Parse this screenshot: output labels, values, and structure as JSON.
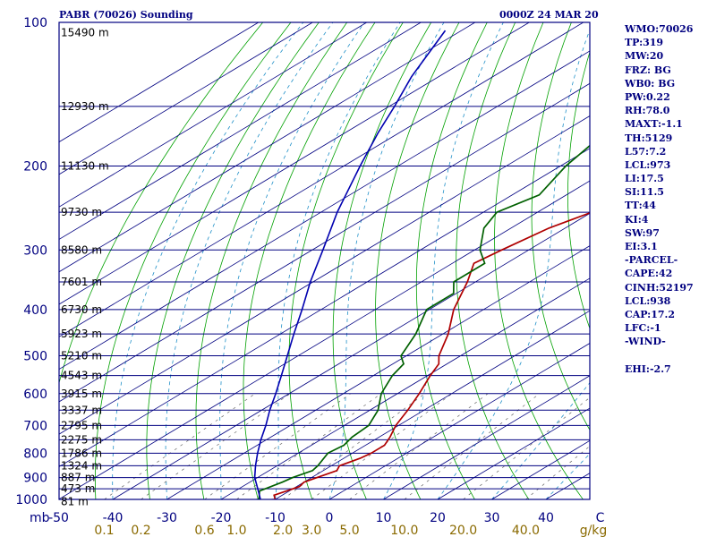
{
  "header": {
    "station_title": "PABR (70026) Sounding",
    "time_title": "0000Z 24 MAR 20"
  },
  "indices": [
    "WMO:70026",
    "TP:319",
    "MW:20",
    "FRZ: BG",
    "WB0: BG",
    "PW:0.22",
    "RH:78.0",
    "MAXT:-1.1",
    "TH:5129",
    "L57:7.2",
    "LCL:973",
    "LI:17.5",
    "SI:11.5",
    "TT:44",
    "KI:4",
    "SW:97",
    "EI:3.1",
    "-PARCEL-",
    "CAPE:42",
    "CINH:52197",
    "LCL:938",
    "CAP:17.2",
    "LFC:-1",
    "-WIND-",
    "",
    "EHI:-2.7"
  ],
  "colors": {
    "frame": "#000080",
    "isobar": "#000080",
    "isotherm": "#000080",
    "dry_adiabat": "#00a000",
    "moist_adiabat": "#2090c8",
    "mixing_ratio": "#666666",
    "temperature": "#b00000",
    "dewpoint": "#006000",
    "parcel": "#0000b0",
    "pressure_labels": "#000080",
    "temperature_labels": "#000080",
    "mixing_ratio_labels": "#8a6a00"
  },
  "chart_data": {
    "type": "line",
    "title": "PABR (70026) Sounding",
    "subtitle": "0000Z 24 MAR 20",
    "pressure_axis": {
      "unit": "mb",
      "scale": "log",
      "range": [
        1000,
        100
      ],
      "ticks": [
        "100",
        "200",
        "300",
        "400",
        "500",
        "600",
        "700",
        "800",
        "900",
        "1000"
      ]
    },
    "temperature_axis": {
      "range": [
        -50,
        50
      ],
      "tick_labels": [
        "-50",
        "-40",
        "-30",
        "-20",
        "-10",
        "0",
        "10",
        "20",
        "30",
        "40",
        "C"
      ]
    },
    "mixing_ratio_axis": {
      "unit": "g/kg",
      "values": [
        0.1,
        0.2,
        0.6,
        1.0,
        2.0,
        3.0,
        5.0,
        10.0,
        20.0,
        40.0
      ],
      "tick_labels": [
        "0.1",
        "0.2",
        "0.6",
        "1.0",
        "2.0",
        "3.0",
        "5.0",
        "10.0",
        "20.0",
        "40.0",
        "g/kg"
      ]
    },
    "height_labels": [
      {
        "p": 105,
        "label": "15490 m"
      },
      {
        "p": 150,
        "label": "12930 m"
      },
      {
        "p": 200,
        "label": "11130 m"
      },
      {
        "p": 250,
        "label": "9730 m"
      },
      {
        "p": 300,
        "label": "8580 m"
      },
      {
        "p": 350,
        "label": "7601 m"
      },
      {
        "p": 400,
        "label": "6730 m"
      },
      {
        "p": 450,
        "label": "5923 m"
      },
      {
        "p": 500,
        "label": "5210 m"
      },
      {
        "p": 550,
        "label": "4543 m"
      },
      {
        "p": 600,
        "label": "3915 m"
      },
      {
        "p": 650,
        "label": "3337 m"
      },
      {
        "p": 700,
        "label": "2795 m"
      },
      {
        "p": 750,
        "label": "2275 m"
      },
      {
        "p": 800,
        "label": "1786 m"
      },
      {
        "p": 850,
        "label": "1324 m"
      },
      {
        "p": 900,
        "label": "887 m"
      },
      {
        "p": 950,
        "label": "473 m"
      },
      {
        "p": 1010,
        "label": "81 m"
      }
    ],
    "series": [
      {
        "key": "temperature",
        "values": [
          [
            1010,
            -14.5
          ],
          [
            1000,
            -10.0
          ],
          [
            980,
            -11.5
          ],
          [
            960,
            -10.5
          ],
          [
            940,
            -9.5
          ],
          [
            920,
            -10.0
          ],
          [
            900,
            -9.0
          ],
          [
            870,
            -7.5
          ],
          [
            850,
            -8.5
          ],
          [
            820,
            -7.0
          ],
          [
            800,
            -6.5
          ],
          [
            770,
            -6.5
          ],
          [
            740,
            -8.0
          ],
          [
            700,
            -10.5
          ],
          [
            650,
            -13.0
          ],
          [
            600,
            -16.0
          ],
          [
            550,
            -19.5
          ],
          [
            520,
            -21.5
          ],
          [
            500,
            -24.0
          ],
          [
            450,
            -29.0
          ],
          [
            400,
            -35.5
          ],
          [
            350,
            -41.5
          ],
          [
            320,
            -46.0
          ],
          [
            300,
            -45.0
          ],
          [
            270,
            -43.0
          ],
          [
            250,
            -40.0
          ],
          [
            230,
            -38.0
          ],
          [
            200,
            -39.0
          ],
          [
            180,
            -39.0
          ],
          [
            160,
            -38.0
          ],
          [
            140,
            -37.5
          ],
          [
            120,
            -37.0
          ],
          [
            100,
            -36.0
          ]
        ]
      },
      {
        "key": "dewpoint",
        "values": [
          [
            1010,
            -16.0
          ],
          [
            1000,
            -13.0
          ],
          [
            960,
            -15.5
          ],
          [
            920,
            -14.0
          ],
          [
            900,
            -13.5
          ],
          [
            870,
            -12.0
          ],
          [
            850,
            -12.5
          ],
          [
            800,
            -14.5
          ],
          [
            770,
            -14.0
          ],
          [
            740,
            -15.0
          ],
          [
            700,
            -15.5
          ],
          [
            650,
            -18.5
          ],
          [
            600,
            -23.0
          ],
          [
            550,
            -26.5
          ],
          [
            520,
            -28.0
          ],
          [
            500,
            -31.0
          ],
          [
            450,
            -35.0
          ],
          [
            400,
            -40.5
          ],
          [
            370,
            -40.5
          ],
          [
            350,
            -44.0
          ],
          [
            320,
            -44.0
          ],
          [
            300,
            -49.0
          ],
          [
            270,
            -55.0
          ],
          [
            250,
            -57.5
          ],
          [
            230,
            -55.0
          ],
          [
            200,
            -59.0
          ],
          [
            180,
            -61.0
          ],
          [
            160,
            -63.0
          ],
          [
            140,
            -64.0
          ],
          [
            120,
            -65.0
          ],
          [
            100,
            -65.0
          ]
        ]
      },
      {
        "key": "parcel",
        "values": [
          [
            1010,
            -12.0
          ],
          [
            950,
            -16.5
          ],
          [
            900,
            -20.5
          ],
          [
            850,
            -24.0
          ],
          [
            800,
            -27.5
          ],
          [
            750,
            -31.0
          ],
          [
            700,
            -34.5
          ],
          [
            650,
            -38.5
          ],
          [
            600,
            -42.5
          ],
          [
            550,
            -47.0
          ],
          [
            500,
            -52.0
          ],
          [
            450,
            -57.5
          ],
          [
            400,
            -63.5
          ],
          [
            350,
            -70.5
          ],
          [
            300,
            -78.0
          ],
          [
            250,
            -87.0
          ],
          [
            200,
            -97.0
          ],
          [
            170,
            -104.0
          ],
          [
            150,
            -109.0
          ],
          [
            130,
            -115.0
          ],
          [
            110,
            -121.0
          ],
          [
            104,
            -123.0
          ]
        ]
      }
    ]
  }
}
